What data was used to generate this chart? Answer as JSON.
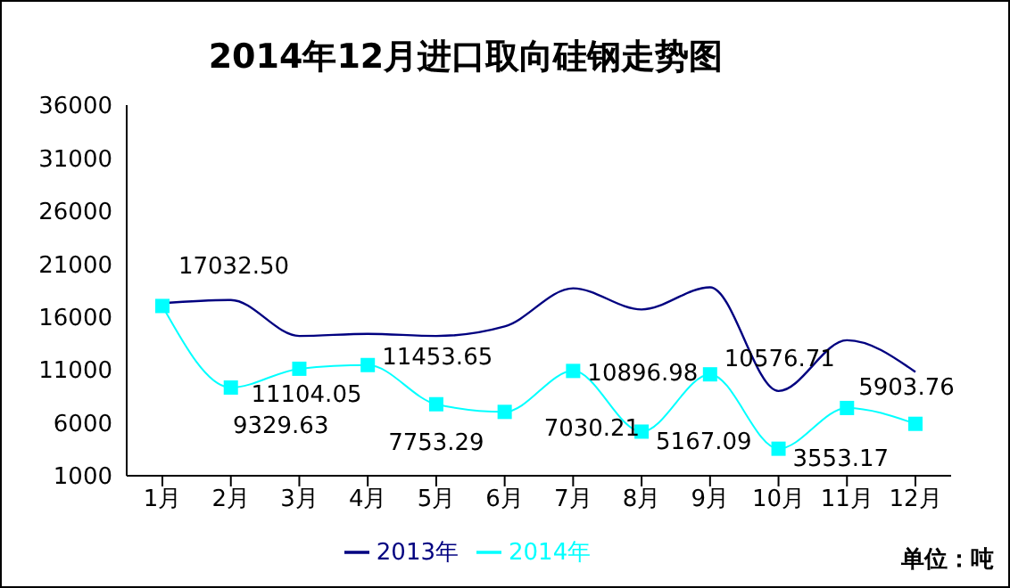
{
  "chart_data": {
    "type": "line",
    "title": "2014年12月进口取向硅钢走势图",
    "categories": [
      "1月",
      "2月",
      "3月",
      "4月",
      "5月",
      "6月",
      "7月",
      "8月",
      "9月",
      "10月",
      "11月",
      "12月"
    ],
    "series": [
      {
        "name": "2013年",
        "color": "#000080",
        "marker": "none",
        "values": [
          17300,
          17600,
          14200,
          14400,
          14200,
          15100,
          18700,
          16700,
          18800,
          9000,
          13800,
          10800
        ]
      },
      {
        "name": "2014年",
        "color": "#00ffff",
        "marker": "square",
        "values": [
          17032.5,
          9329.63,
          11104.05,
          11453.65,
          7753.29,
          7030.21,
          10896.98,
          5167.09,
          10576.71,
          3553.17,
          7400,
          5903.76
        ],
        "value_labels": [
          "17032.50",
          "9329.63",
          "11104.05",
          "11453.65",
          "7753.29",
          "7030.21",
          "10896.98",
          "5167.09",
          "10576.71",
          "3553.17",
          null,
          "5903.76"
        ]
      }
    ],
    "ylim": [
      1000,
      36000
    ],
    "yticks": [
      1000,
      6000,
      11000,
      16000,
      21000,
      26000,
      31000,
      36000
    ],
    "grid": false,
    "legend": "bottom",
    "annotations": [
      "单位：吨"
    ]
  }
}
